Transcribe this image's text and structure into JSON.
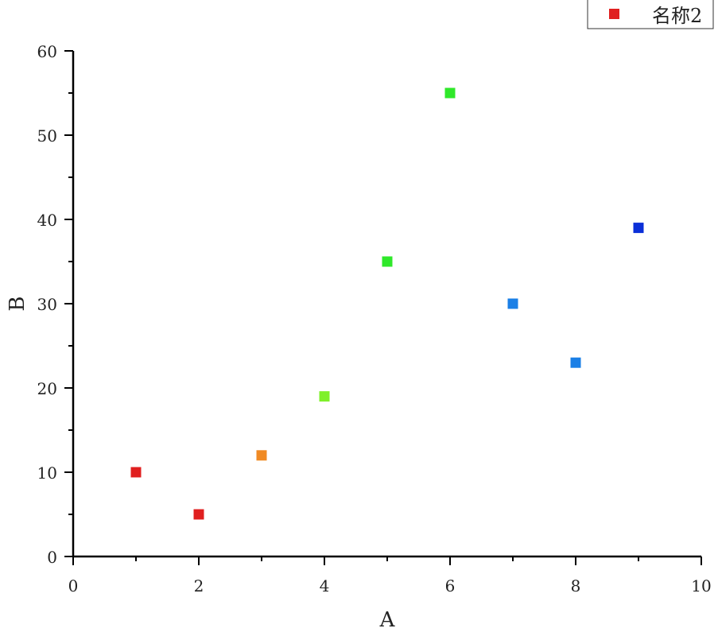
{
  "chart_data": {
    "type": "scatter",
    "title": "",
    "xlabel": "A",
    "ylabel": "B",
    "xlim": [
      0,
      10
    ],
    "ylim": [
      0,
      60
    ],
    "x_ticks": [
      "0",
      "2",
      "4",
      "6",
      "8",
      "10"
    ],
    "y_ticks": [
      "0",
      "10",
      "20",
      "30",
      "40",
      "50",
      "60"
    ],
    "grid": false,
    "legend_position": "top-right",
    "series": [
      {
        "name": "名称2",
        "legend_color": "#e01f1f",
        "x": [
          1,
          2,
          3,
          4,
          5,
          6,
          7,
          8,
          9
        ],
        "y": [
          10,
          5,
          12,
          19,
          35,
          55,
          30,
          23,
          39
        ],
        "colors": [
          "#e01f1f",
          "#e01f1f",
          "#f08a24",
          "#7ff02a",
          "#2fe82a",
          "#2fe82a",
          "#1a7fe6",
          "#1a7fe6",
          "#0b2fd8"
        ]
      }
    ]
  }
}
